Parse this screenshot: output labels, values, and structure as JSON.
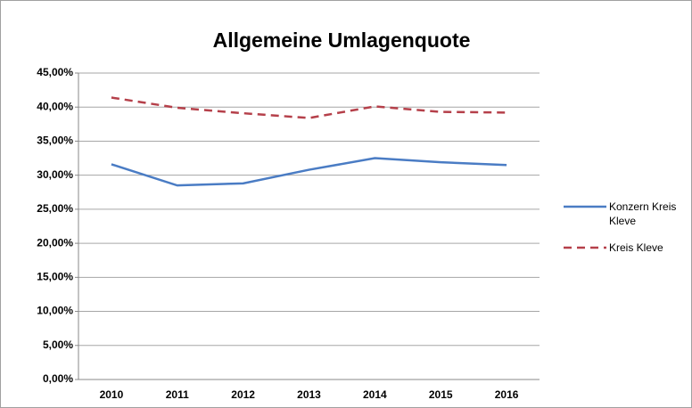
{
  "chart_data": {
    "type": "line",
    "title": "Allgemeine Umlagenquote",
    "categories": [
      "2010",
      "2011",
      "2012",
      "2013",
      "2014",
      "2015",
      "2016"
    ],
    "series": [
      {
        "name": "Konzern Kreis Kleve",
        "color": "#4a7cc4",
        "style": "solid",
        "values": [
          31.6,
          28.5,
          28.8,
          30.8,
          32.5,
          31.9,
          31.5
        ]
      },
      {
        "name": "Kreis Kleve",
        "color": "#b5404a",
        "style": "dashed",
        "values": [
          41.4,
          39.9,
          39.1,
          38.4,
          40.1,
          39.3,
          39.2
        ]
      }
    ],
    "ylim": [
      0,
      45
    ],
    "yticks": [
      {
        "value": 0,
        "label": "0,00%"
      },
      {
        "value": 5,
        "label": "5,00%"
      },
      {
        "value": 10,
        "label": "10,00%"
      },
      {
        "value": 15,
        "label": "15,00%"
      },
      {
        "value": 20,
        "label": "20,00%"
      },
      {
        "value": 25,
        "label": "25,00%"
      },
      {
        "value": 30,
        "label": "30,00%"
      },
      {
        "value": 35,
        "label": "35,00%"
      },
      {
        "value": 40,
        "label": "40,00%"
      },
      {
        "value": 45,
        "label": "45,00%"
      }
    ],
    "grid": true,
    "legend": "right"
  }
}
